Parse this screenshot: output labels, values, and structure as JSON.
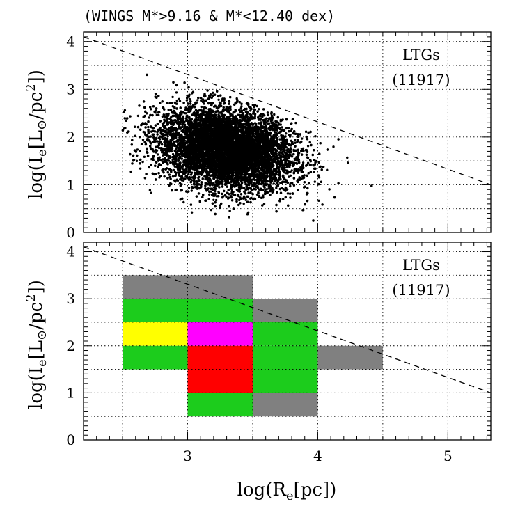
{
  "figure": {
    "title": "(WINGS M*>9.16 & M*<12.40 dex)",
    "xlabel_main": "log(R",
    "xlabel_sub": "e",
    "xlabel_end": "[pc])",
    "ylabel_main": "log(I",
    "ylabel_sub": "e",
    "ylabel_mid": "[L",
    "ylabel_sun": "⊙",
    "ylabel_mid2": "/pc",
    "ylabel_sup": "2",
    "ylabel_end": "])",
    "top_annotation": {
      "line1": "LTGs",
      "line2": "(11917)"
    },
    "bottom_annotation": {
      "line1": "LTGs",
      "line2": "(11917)"
    }
  },
  "colors": {
    "gray": "#808080",
    "green": "#1ccc1c",
    "yellow": "#ffff00",
    "magenta": "#ff00ff",
    "red": "#ff0000",
    "points": "#000000"
  },
  "chart_data": [
    {
      "type": "scatter",
      "panel": "top",
      "xlim": [
        2.2,
        5.33
      ],
      "ylim": [
        0,
        4.2
      ],
      "xticks": [
        "3",
        "4",
        "5"
      ],
      "yticks": [
        "0",
        "1",
        "2",
        "3",
        "4"
      ],
      "grid": true,
      "n_points": 11917,
      "point_cloud": {
        "x_center": 3.3,
        "y_center": 1.75,
        "x_range": [
          2.5,
          4.45
        ],
        "y_range": [
          0.2,
          3.7
        ]
      },
      "dashed_line": {
        "x": [
          2.2,
          5.33
        ],
        "y": [
          4.1,
          1.0
        ]
      }
    },
    {
      "type": "heatmap",
      "panel": "bottom",
      "xlim": [
        2.2,
        5.33
      ],
      "ylim": [
        0,
        4.2
      ],
      "xticks": [
        "3",
        "4",
        "5"
      ],
      "yticks": [
        "0",
        "1",
        "2",
        "3",
        "4"
      ],
      "grid": true,
      "cells": [
        {
          "x": [
            2.5,
            3.5
          ],
          "y": [
            3.0,
            3.5
          ],
          "color": "gray"
        },
        {
          "x": [
            2.5,
            3.5
          ],
          "y": [
            2.5,
            3.0
          ],
          "color": "green"
        },
        {
          "x": [
            3.5,
            4.0
          ],
          "y": [
            2.5,
            3.0
          ],
          "color": "gray"
        },
        {
          "x": [
            2.5,
            3.0
          ],
          "y": [
            2.0,
            2.5
          ],
          "color": "yellow"
        },
        {
          "x": [
            3.0,
            3.5
          ],
          "y": [
            2.0,
            2.5
          ],
          "color": "magenta"
        },
        {
          "x": [
            3.5,
            4.0
          ],
          "y": [
            2.0,
            2.5
          ],
          "color": "green"
        },
        {
          "x": [
            2.5,
            3.0
          ],
          "y": [
            1.5,
            2.0
          ],
          "color": "green"
        },
        {
          "x": [
            3.0,
            3.5
          ],
          "y": [
            1.0,
            2.0
          ],
          "color": "red"
        },
        {
          "x": [
            3.5,
            4.0
          ],
          "y": [
            1.0,
            2.0
          ],
          "color": "green"
        },
        {
          "x": [
            4.0,
            4.5
          ],
          "y": [
            1.5,
            2.0
          ],
          "color": "gray"
        },
        {
          "x": [
            3.0,
            3.5
          ],
          "y": [
            0.5,
            1.0
          ],
          "color": "green"
        },
        {
          "x": [
            3.5,
            4.0
          ],
          "y": [
            0.5,
            1.0
          ],
          "color": "gray"
        }
      ],
      "dashed_line": {
        "x": [
          2.2,
          5.33
        ],
        "y": [
          4.1,
          1.0
        ]
      }
    }
  ]
}
